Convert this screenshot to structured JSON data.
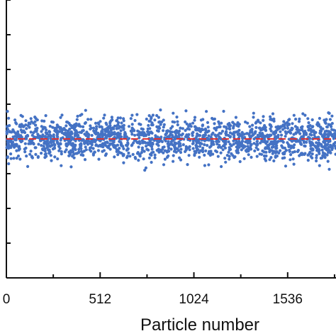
{
  "chart_data": {
    "type": "scatter",
    "title": "",
    "xlabel": "Particle number",
    "ylabel": "",
    "xlim": [
      0,
      1800
    ],
    "ylim": [
      0,
      8
    ],
    "x_ticks": [
      0,
      512,
      1024,
      1536
    ],
    "x_tick_labels": [
      "0",
      "512",
      "1024",
      "1536"
    ],
    "y_ticks": [
      0,
      1,
      2,
      3,
      4,
      5,
      6,
      7,
      8
    ],
    "grid": false,
    "legend": "none",
    "series": [
      {
        "kind": "points",
        "color": "#4472c4",
        "count": 1800,
        "x_range": [
          0,
          1800
        ],
        "mean": 4.0,
        "spread": [
          3.1,
          4.95
        ]
      },
      {
        "kind": "reference-line",
        "style": "dashed",
        "color": "#e03030",
        "y": 4.0
      }
    ]
  }
}
